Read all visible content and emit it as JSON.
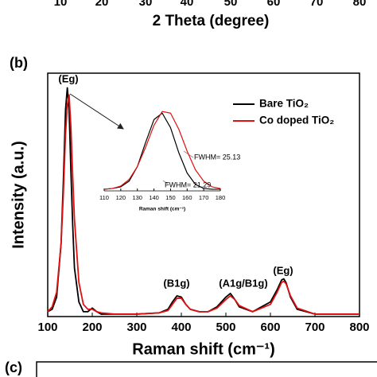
{
  "previous_panel": {
    "xticks": [
      10,
      20,
      30,
      40,
      50,
      60,
      70,
      80
    ],
    "xlabel": "2 Theta (degree)"
  },
  "panel_labels": [
    "(b)",
    "(c)"
  ],
  "chart_data": [
    {
      "type": "line",
      "xlabel": "Raman shift (cm⁻¹)",
      "ylabel": "Intensity (a.u.)",
      "xlim": [
        100,
        800
      ],
      "xticks": [
        100,
        200,
        300,
        400,
        500,
        600,
        700,
        800
      ],
      "ylim": [
        0,
        1
      ],
      "annotations": [
        "(Eg)",
        "(B1g)",
        "(A1g/B1g)",
        "(Eg)"
      ],
      "x": [
        100,
        110,
        120,
        130,
        135,
        140,
        144,
        148,
        152,
        156,
        160,
        170,
        180,
        190,
        200,
        210,
        220,
        250,
        300,
        350,
        370,
        380,
        390,
        400,
        410,
        420,
        440,
        460,
        480,
        500,
        510,
        520,
        530,
        560,
        600,
        615,
        625,
        630,
        635,
        645,
        660,
        700,
        750,
        800
      ],
      "series": [
        {
          "name": "Bare TiO₂",
          "color": "#000000",
          "values": [
            0.02,
            0.03,
            0.08,
            0.3,
            0.55,
            0.85,
            0.94,
            0.85,
            0.6,
            0.38,
            0.2,
            0.06,
            0.02,
            0.02,
            0.035,
            0.02,
            0.01,
            0.01,
            0.01,
            0.015,
            0.03,
            0.06,
            0.085,
            0.08,
            0.05,
            0.03,
            0.02,
            0.02,
            0.04,
            0.08,
            0.095,
            0.07,
            0.04,
            0.02,
            0.06,
            0.11,
            0.15,
            0.155,
            0.14,
            0.08,
            0.03,
            0.01,
            0.01,
            0.01
          ]
        },
        {
          "name": "Co doped TiO₂",
          "color": "#e01010",
          "values": [
            0.02,
            0.04,
            0.1,
            0.3,
            0.5,
            0.75,
            0.87,
            0.91,
            0.78,
            0.58,
            0.4,
            0.14,
            0.05,
            0.03,
            0.03,
            0.02,
            0.015,
            0.01,
            0.01,
            0.015,
            0.025,
            0.05,
            0.075,
            0.075,
            0.05,
            0.03,
            0.02,
            0.02,
            0.035,
            0.07,
            0.085,
            0.07,
            0.045,
            0.02,
            0.05,
            0.1,
            0.14,
            0.145,
            0.135,
            0.085,
            0.035,
            0.01,
            0.01,
            0.01
          ]
        }
      ]
    },
    {
      "type": "line",
      "xlabel": "Raman shift (cm⁻¹)",
      "xlim": [
        110,
        180
      ],
      "xticks": [
        110,
        120,
        130,
        140,
        150,
        160,
        170,
        180
      ],
      "ylim": [
        0,
        1.1
      ],
      "annotations": [
        "FWHM= 25.13",
        "FWHM= 21.29"
      ],
      "x": [
        110,
        115,
        120,
        125,
        130,
        135,
        140,
        145,
        150,
        155,
        160,
        165,
        170,
        175,
        180
      ],
      "series": [
        {
          "color": "#000000",
          "values": [
            0.02,
            0.03,
            0.05,
            0.12,
            0.3,
            0.6,
            0.88,
            0.96,
            0.78,
            0.47,
            0.22,
            0.08,
            0.03,
            0.02,
            0.02
          ]
        },
        {
          "color": "#e01010",
          "values": [
            0.02,
            0.03,
            0.06,
            0.14,
            0.3,
            0.54,
            0.81,
            0.98,
            0.96,
            0.76,
            0.49,
            0.26,
            0.12,
            0.05,
            0.03
          ]
        }
      ]
    }
  ]
}
